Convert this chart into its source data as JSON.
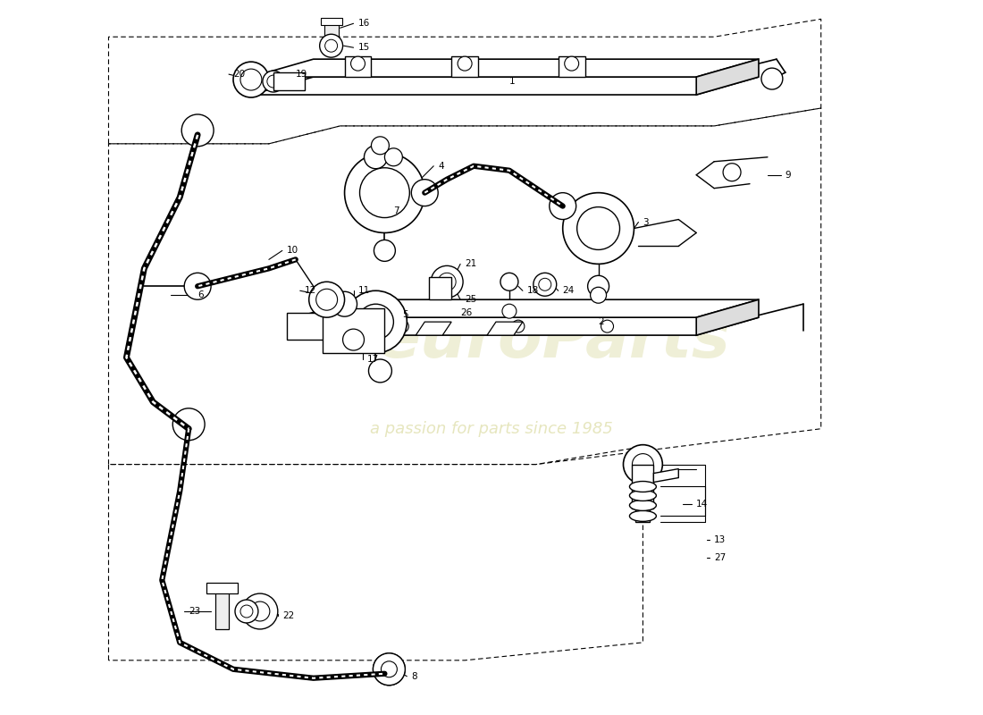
{
  "bg_color": "#ffffff",
  "line_color": "#000000",
  "watermark_color1": "#c8c870",
  "watermark_color2": "#c8c870",
  "fig_width": 11.0,
  "fig_height": 8.0,
  "dpi": 100
}
